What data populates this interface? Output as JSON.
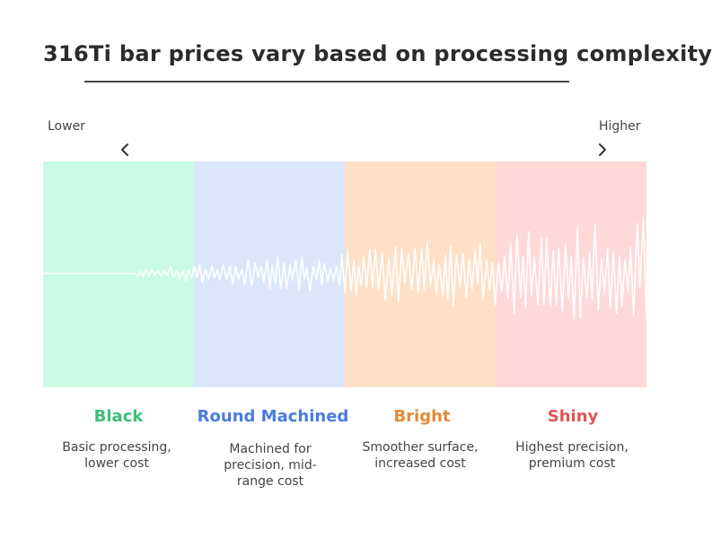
{
  "title": "316Ti bar prices vary based on processing complexity",
  "scale": {
    "low_label": "Lower",
    "high_label": "Higher"
  },
  "colors": {
    "black_zone": "#c9fbe4",
    "round_zone": "#dce6fb",
    "bright_zone": "#fde0c7",
    "shiny_zone": "#ffd8d8",
    "black_text": "#3cbf78",
    "round_text": "#4a7be0",
    "bright_text": "#e38a3a",
    "shiny_text": "#e05555",
    "wave": "#ffffff"
  },
  "zones": [
    {
      "title": "Black",
      "desc_lines": [
        "Basic processing,",
        "lower cost"
      ]
    },
    {
      "title": "Round Machined",
      "desc_lines": [
        "Machined for",
        "precision, mid-",
        "range cost"
      ]
    },
    {
      "title": "Bright",
      "desc_lines": [
        "Smoother surface,",
        "increased cost"
      ]
    },
    {
      "title": "Shiny",
      "desc_lines": [
        "Highest precision,",
        "premium cost"
      ]
    }
  ]
}
